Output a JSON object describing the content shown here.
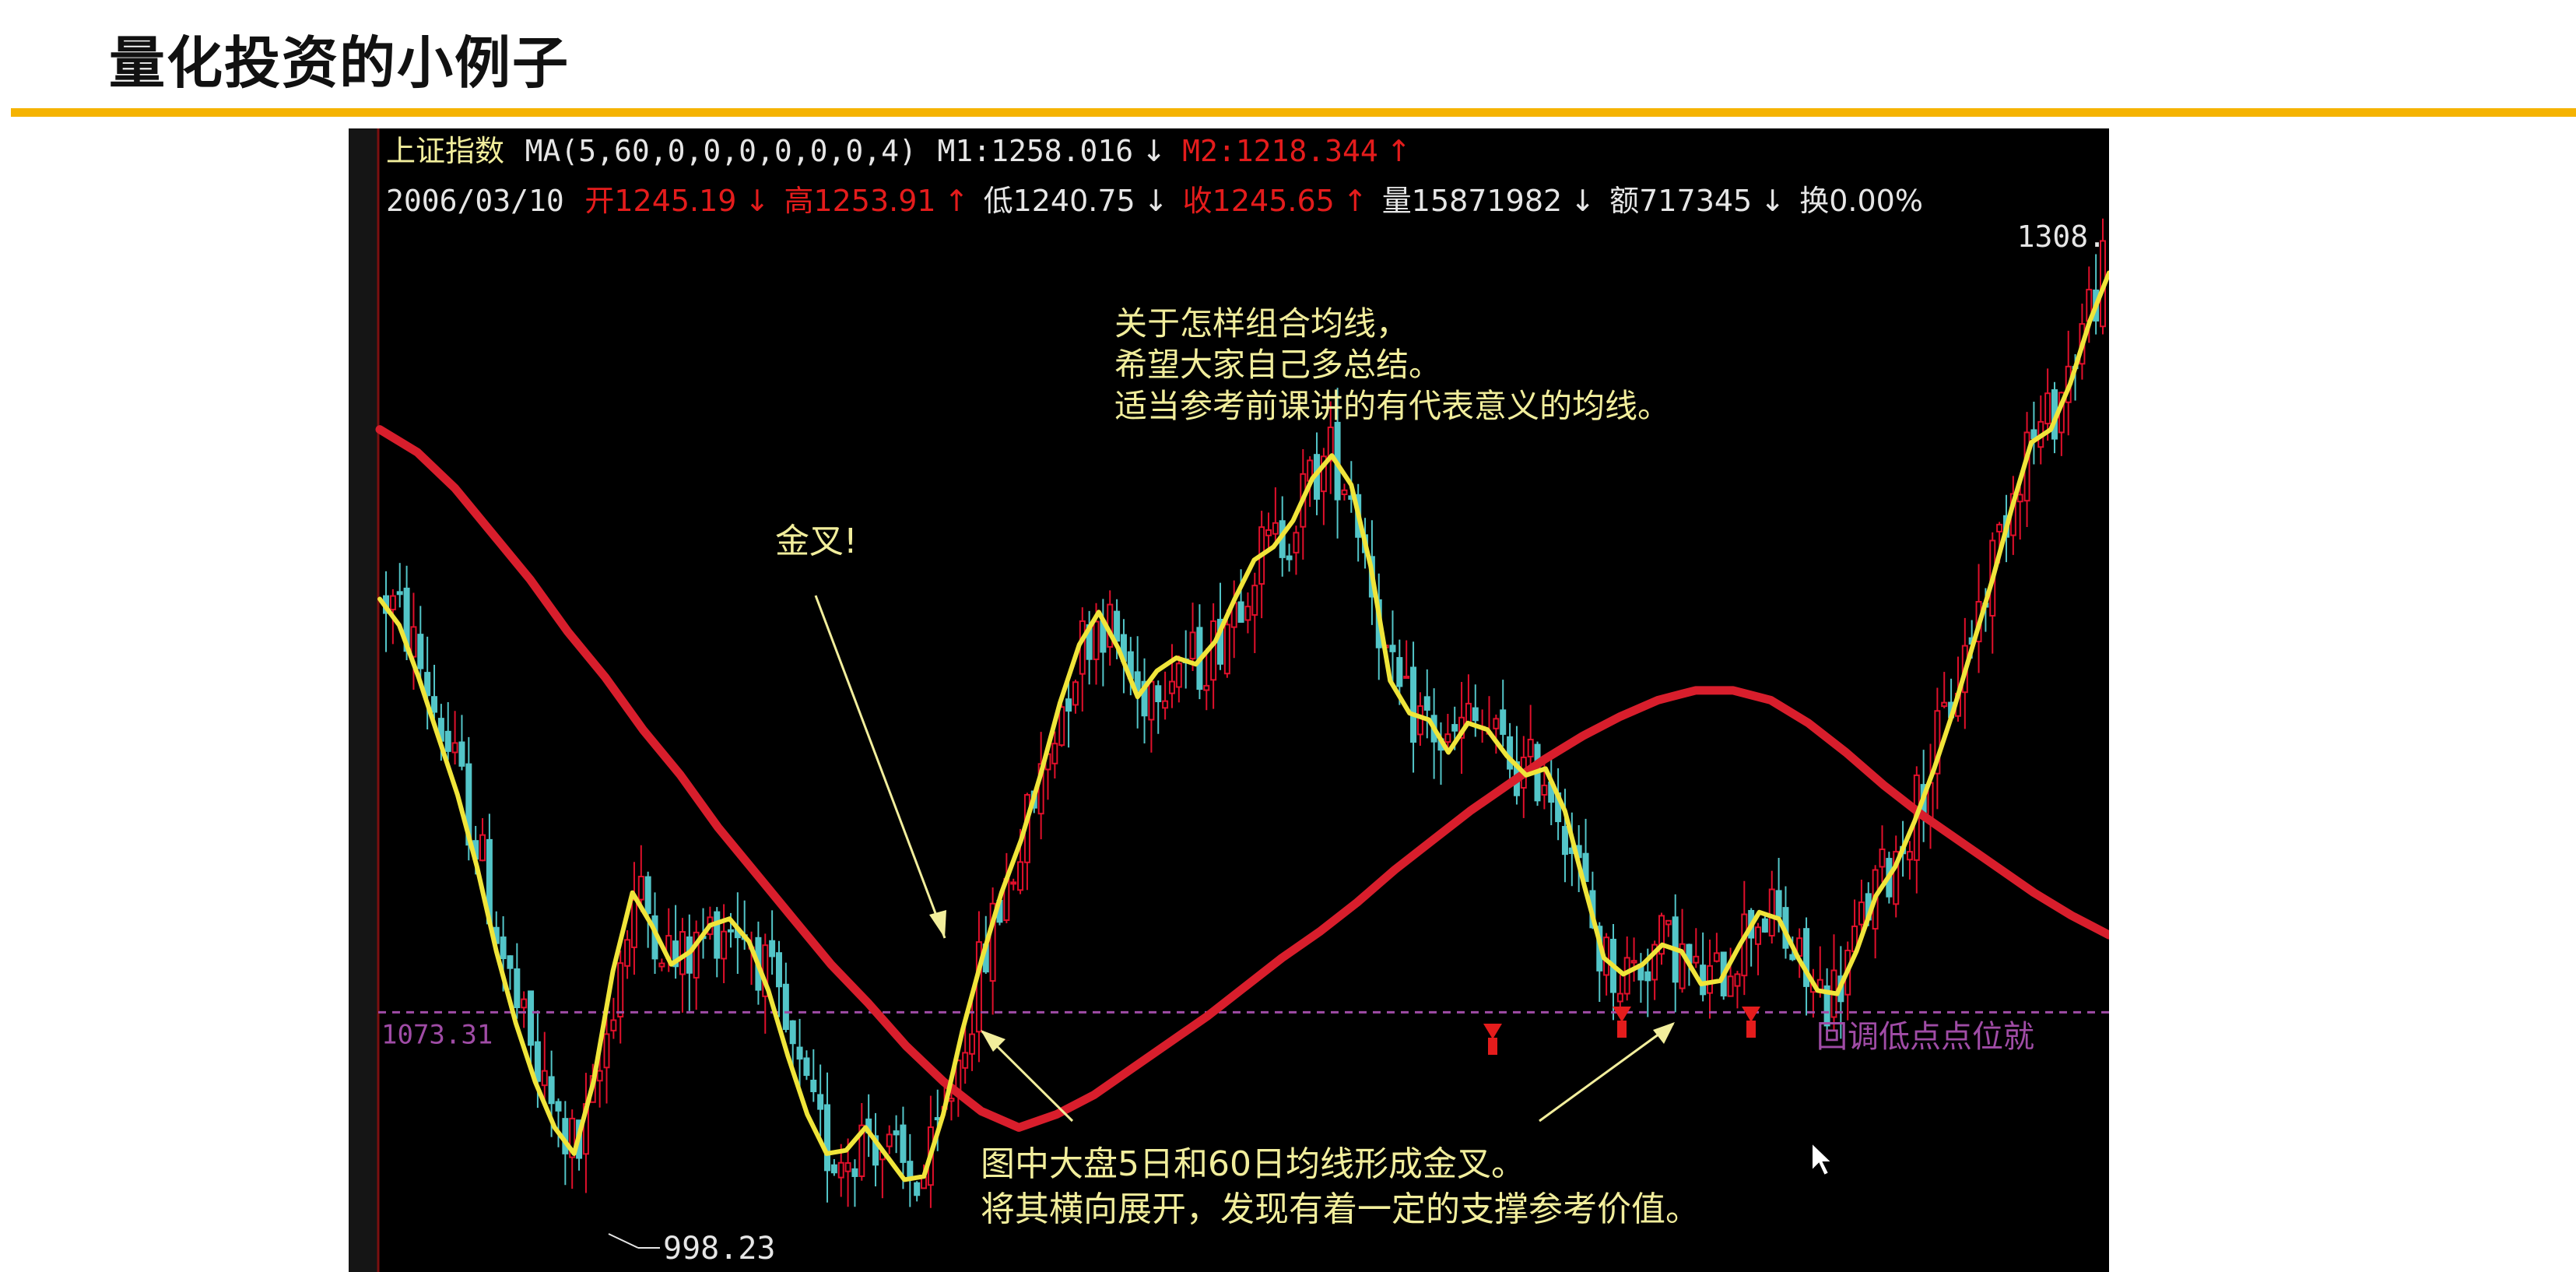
{
  "slide": {
    "title": "量化投资的小例子",
    "accent_color": "#f5b301"
  },
  "chart_data": {
    "type": "candlestick",
    "header": {
      "index_name": "上证指数",
      "ma_spec": "MA(5,60,0,0,0,0,0,0,4)",
      "m1": "M1:1258.016",
      "m1_arrow": "↓",
      "m2": "M2:1218.344",
      "m2_arrow": "↑",
      "date": "2006/03/10",
      "open": "开1245.19",
      "open_arrow": "↓",
      "high": "高1253.91",
      "high_arrow": "↑",
      "low": "低1240.75",
      "low_arrow": "↓",
      "close": "收1245.65",
      "close_arrow": "↑",
      "volume": "量15871982",
      "volume_arrow": "↓",
      "amount": "额717345",
      "amount_arrow": "↓",
      "turnover": "换0.00%"
    },
    "price_top_label": "1308.",
    "price_bottom_label": "998.23",
    "price_range": [
      998.23,
      1308.0
    ],
    "support_level": {
      "label": "1073.31",
      "value": 1073.31
    },
    "support_caption": "回调低点点位就",
    "ma5": [
      1200,
      1192,
      1176,
      1158,
      1140,
      1118,
      1092,
      1070,
      1052,
      1038,
      1030,
      1052,
      1086,
      1110,
      1100,
      1088,
      1092,
      1100,
      1102,
      1095,
      1080,
      1060,
      1042,
      1030,
      1031,
      1038,
      1030,
      1022,
      1023,
      1042,
      1068,
      1090,
      1110,
      1126,
      1146,
      1168,
      1186,
      1196,
      1185,
      1170,
      1178,
      1182,
      1180,
      1187,
      1200,
      1212,
      1216,
      1224,
      1237,
      1244,
      1235,
      1210,
      1175,
      1165,
      1163,
      1153,
      1162,
      1160,
      1152,
      1146,
      1148,
      1135,
      1112,
      1090,
      1085,
      1088,
      1094,
      1092,
      1082,
      1083,
      1094,
      1104,
      1102,
      1090,
      1080,
      1079,
      1092,
      1109,
      1118,
      1132,
      1148,
      1166,
      1186,
      1206,
      1228,
      1248,
      1252,
      1266,
      1285,
      1300
    ],
    "ma60": [
      1252,
      1245,
      1234,
      1220,
      1206,
      1190,
      1176,
      1160,
      1146,
      1130,
      1116,
      1102,
      1088,
      1076,
      1063,
      1052,
      1043,
      1038,
      1042,
      1048,
      1056,
      1064,
      1072,
      1081,
      1090,
      1098,
      1107,
      1117,
      1126,
      1135,
      1143,
      1151,
      1158,
      1164,
      1169,
      1172,
      1172,
      1169,
      1162,
      1153,
      1143,
      1134,
      1126,
      1118,
      1110,
      1103,
      1097
    ],
    "buy_markers": 3,
    "annotations": {
      "top_note": [
        "关于怎样组合均线，",
        "希望大家自己多总结。",
        "适当参考前课讲的有代表意义的均线。"
      ],
      "golden_cross": "金叉!",
      "bottom_note": [
        "图中大盘5日和60日均线形成金叉。",
        "将其横向展开，发现有着一定的支撑参考价值。"
      ]
    },
    "colors": {
      "background": "#000000",
      "ma5": "#f0e53a",
      "ma60": "#d81e2c",
      "up_candle": "#e0102b",
      "down_candle": "#53c5c8",
      "text_white": "#e6e6e6",
      "text_red": "#e41c1c",
      "text_yellow": "#f2ee9c",
      "support_line": "#a04ca6"
    }
  }
}
